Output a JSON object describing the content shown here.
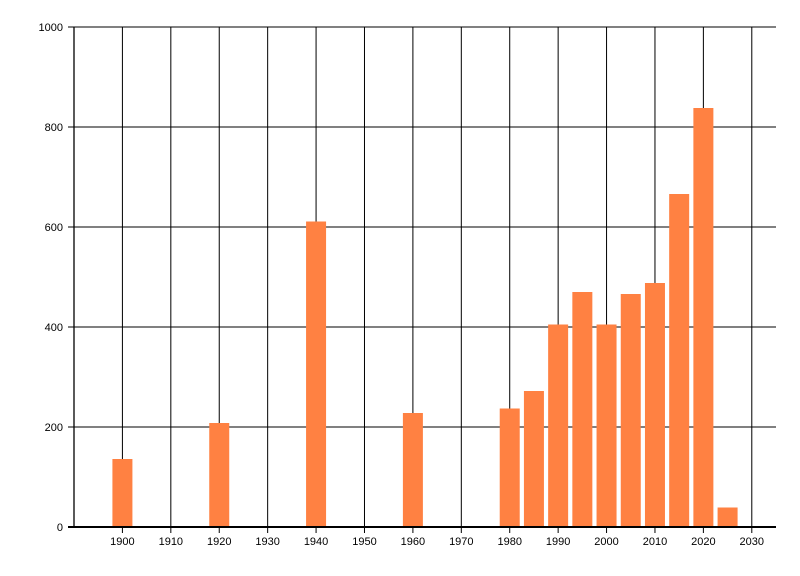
{
  "chart_data": {
    "type": "bar",
    "title": "",
    "xlabel": "",
    "ylabel": "",
    "x": [
      1900,
      1920,
      1940,
      1960,
      1980,
      1985,
      1990,
      1995,
      2000,
      2005,
      2010,
      2015,
      2020,
      2025
    ],
    "values": [
      136,
      208,
      611,
      228,
      237,
      272,
      405,
      470,
      405,
      466,
      488,
      666,
      838,
      39
    ],
    "x_tick_values": [
      1900,
      1910,
      1920,
      1930,
      1940,
      1950,
      1960,
      1970,
      1980,
      1990,
      2000,
      2010,
      2020,
      2030
    ],
    "x_tick_labels": [
      "1900",
      "1910",
      "1920",
      "1930",
      "1940",
      "1950",
      "1960",
      "1970",
      "1980",
      "1990",
      "2000",
      "2010",
      "2020",
      "2030"
    ],
    "y_tick_values": [
      0,
      200,
      400,
      600,
      800,
      1000
    ],
    "y_tick_labels": [
      "0",
      "200",
      "400",
      "600",
      "800",
      "1000"
    ],
    "xlim": [
      1890,
      2035
    ],
    "ylim": [
      0,
      1000
    ],
    "grid": true,
    "legend": "none",
    "bar_color": "#ff8142",
    "grid_color": "#000000",
    "axis_color": "#000000",
    "label_color": "#000000",
    "background_color": "#ffffff"
  }
}
